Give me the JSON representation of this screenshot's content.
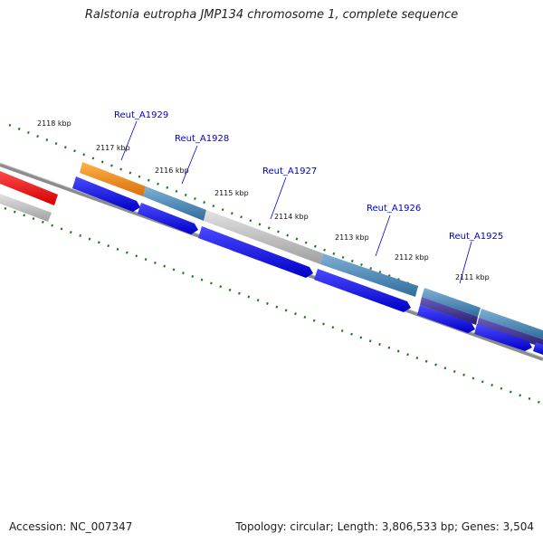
{
  "title": "Ralstonia eutropha JMP134 chromosome 1, complete sequence",
  "footer": {
    "accession": "Accession: NC_007347",
    "summary": "Topology: circular; Length: 3,806,533 bp; Genes: 3,504"
  },
  "kbp_ticks": [
    "2118 kbp",
    "2117 kbp",
    "2116 kbp",
    "2115 kbp",
    "2114 kbp",
    "2113 kbp",
    "2112 kbp",
    "2111 kbp"
  ],
  "gene_labels": [
    "Reut_A1929",
    "Reut_A1928",
    "Reut_A1927",
    "Reut_A1926",
    "Reut_A1925"
  ],
  "colors": {
    "backbone": "#8c8c8c",
    "tick": "#1a7a1a",
    "cds_arrow": "#0000ee",
    "orange_feature": "#f0890f",
    "steel_feature": "#4a86b4",
    "gray_feature": "#b8b8b8",
    "purple_feature": "#3c2f8a",
    "red_feature": "#ee0000",
    "gene_label": "#0000cc"
  }
}
